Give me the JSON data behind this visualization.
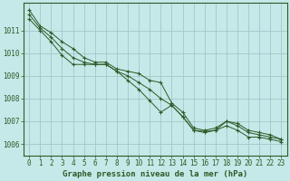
{
  "background_color": "#c5e8e8",
  "plot_bg_color": "#c5e8e8",
  "grid_color": "#a0c8c8",
  "line_color": "#2d5a27",
  "marker_color": "#2d5a27",
  "spine_color": "#2d5a27",
  "xlabel": "Graphe pression niveau de la mer (hPa)",
  "xlabel_fontsize": 6.5,
  "ylabel_fontsize": 5.5,
  "tick_fontsize": 5.5,
  "xlim": [
    -0.5,
    23.5
  ],
  "ylim": [
    1005.5,
    1012.2
  ],
  "yticks": [
    1006,
    1007,
    1008,
    1009,
    1010,
    1011
  ],
  "xticks": [
    0,
    1,
    2,
    3,
    4,
    5,
    6,
    7,
    8,
    9,
    10,
    11,
    12,
    13,
    14,
    15,
    16,
    17,
    18,
    19,
    20,
    21,
    22,
    23
  ],
  "series": [
    [
      1011.9,
      1011.2,
      1010.9,
      1010.5,
      1010.2,
      1009.8,
      1009.6,
      1009.6,
      1009.3,
      1009.2,
      1009.1,
      1008.8,
      1008.7,
      1007.8,
      1007.4,
      1006.7,
      1006.6,
      1006.7,
      1007.0,
      1006.8,
      1006.5,
      1006.4,
      1006.3,
      1006.2
    ],
    [
      1011.7,
      1011.1,
      1010.7,
      1010.2,
      1009.8,
      1009.6,
      1009.5,
      1009.5,
      1009.2,
      1009.0,
      1008.7,
      1008.4,
      1008.0,
      1007.7,
      1007.2,
      1006.6,
      1006.55,
      1006.6,
      1006.8,
      1006.6,
      1006.3,
      1006.3,
      1006.2,
      1006.1
    ],
    [
      1011.5,
      1011.0,
      1010.5,
      1009.9,
      1009.5,
      1009.5,
      1009.5,
      1009.5,
      1009.2,
      1008.8,
      1008.4,
      1007.9,
      1007.4,
      1007.7,
      1007.2,
      1006.6,
      1006.5,
      1006.6,
      1007.0,
      1006.9,
      1006.6,
      1006.5,
      1006.4,
      1006.2
    ]
  ]
}
